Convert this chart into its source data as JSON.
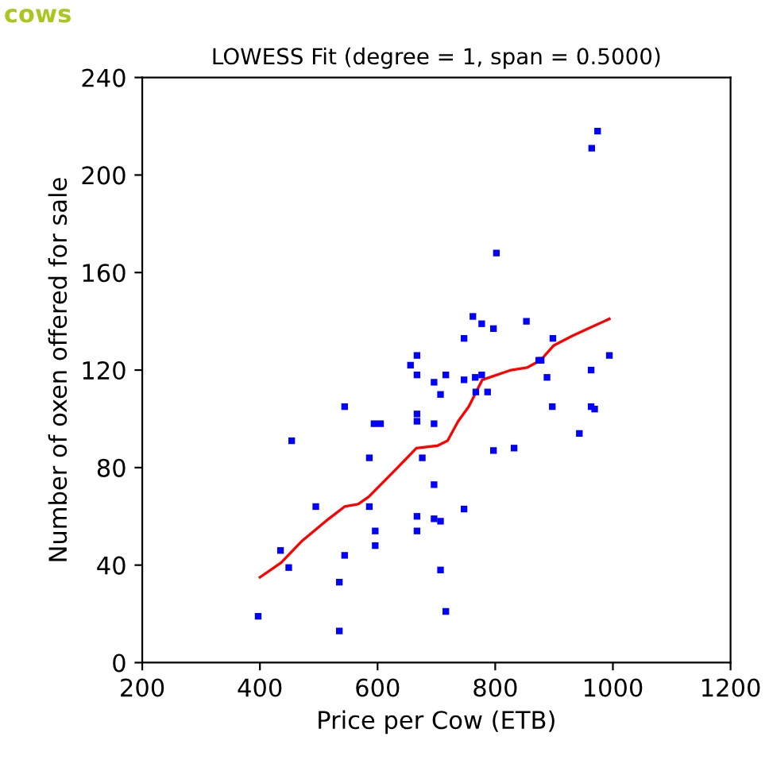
{
  "chart_data": {
    "type": "scatter",
    "title": "LOWESS Fit (degree = 1, span = 0.5000)",
    "xlabel": "Price per Cow (ETB)",
    "ylabel": "Number of oxen offered for sale",
    "annotations": [
      "cows"
    ],
    "xlim": [
      200,
      1200
    ],
    "xticks": [
      200,
      400,
      600,
      800,
      1000,
      1200
    ],
    "ylim": [
      0,
      240
    ],
    "yticks": [
      0,
      40,
      80,
      120,
      160,
      200,
      240
    ],
    "grid": false,
    "legend": false,
    "series": [
      {
        "color": "#0000ff",
        "marker": "square",
        "x": [
          397,
          435,
          449,
          454,
          495,
          535,
          535,
          544,
          544,
          586,
          586,
          596,
          596,
          594,
          605,
          656,
          667,
          667,
          667,
          667,
          676,
          696,
          696,
          667,
          667,
          696,
          707,
          707,
          716,
          696,
          707,
          716,
          747,
          747,
          747,
          766,
          777,
          767,
          787,
          797,
          832,
          888,
          897,
          943,
          963,
          969,
          963,
          974,
          964,
          802,
          762,
          777,
          797,
          853,
          898,
          874,
          878,
          994
        ],
        "values": [
          19,
          46,
          39,
          91,
          64,
          33,
          13,
          105,
          44,
          84,
          64,
          54,
          48,
          98,
          98,
          122,
          126,
          118,
          102,
          99,
          84,
          98,
          73,
          60,
          54,
          59,
          58,
          38,
          21,
          115,
          110,
          118,
          116,
          63,
          133,
          117,
          118,
          111,
          111,
          87,
          88,
          117,
          105,
          94,
          105,
          104,
          120,
          218,
          211,
          168,
          142,
          139,
          137,
          140,
          133,
          124,
          124,
          126
        ]
      },
      {
        "type": "line",
        "color": "#ff0000",
        "marker": "none",
        "line_style": "solid",
        "x": [
          400,
          436,
          472,
          517,
          544,
          567,
          585,
          634,
          666,
          702,
          719,
          737,
          755,
          778,
          827,
          854,
          877,
          899,
          931,
          958,
          994
        ],
        "values": [
          35,
          41,
          50,
          59,
          64,
          65,
          68,
          80,
          88,
          89,
          91,
          99,
          105,
          116,
          120,
          121,
          124,
          130,
          134,
          137,
          141
        ]
      }
    ]
  }
}
